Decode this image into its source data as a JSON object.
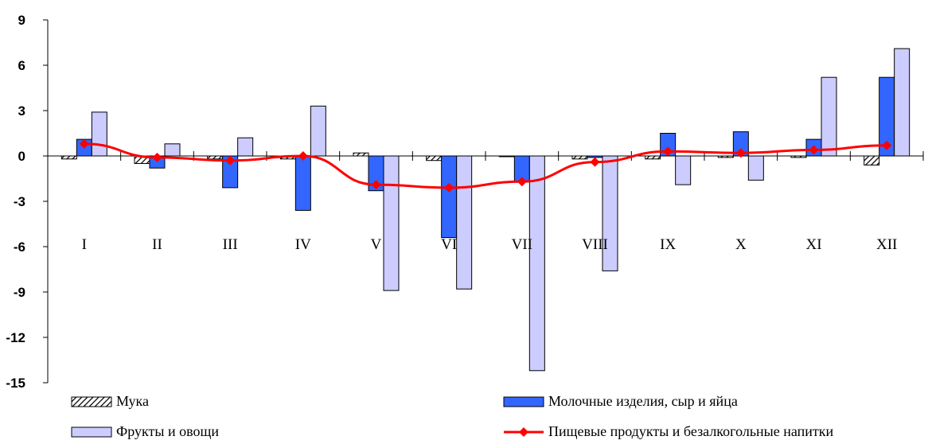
{
  "chart_data": {
    "type": "bar",
    "categories": [
      "I",
      "II",
      "III",
      "IV",
      "V",
      "VI",
      "VII",
      "VIII",
      "IX",
      "X",
      "XI",
      "XII"
    ],
    "yticks": [
      "9",
      "6",
      "3",
      "0",
      "-3",
      "-6",
      "-9",
      "-12",
      "-15"
    ],
    "ylim": [
      -15,
      9
    ],
    "grid": false,
    "legend_placement": "bottom",
    "series": [
      {
        "name": "Мука",
        "type": "bar",
        "pattern": "hatch",
        "color": "#000000",
        "values": [
          -0.2,
          -0.5,
          -0.2,
          -0.2,
          0.2,
          -0.3,
          -0.05,
          -0.2,
          -0.2,
          -0.1,
          -0.1,
          -0.6
        ]
      },
      {
        "name": "Молочные изделия, сыр и яйца",
        "type": "bar",
        "color": "#3366FF",
        "values": [
          1.1,
          -0.8,
          -2.1,
          -3.6,
          -2.3,
          -5.4,
          -1.7,
          -0.1,
          1.5,
          1.6,
          1.1,
          5.2
        ]
      },
      {
        "name": "Фрукты и овощи",
        "type": "bar",
        "color": "#CCCCFF",
        "values": [
          2.9,
          0.8,
          1.2,
          3.3,
          -8.9,
          -8.8,
          -14.2,
          -7.6,
          -1.9,
          -1.6,
          5.2,
          7.1
        ]
      },
      {
        "name": "Пищевые продукты и безалкогольные напитки",
        "type": "line",
        "color": "#FF0000",
        "values": [
          0.8,
          -0.1,
          -0.3,
          0.0,
          -1.9,
          -2.1,
          -1.7,
          -0.4,
          0.3,
          0.2,
          0.4,
          0.7
        ]
      }
    ]
  }
}
